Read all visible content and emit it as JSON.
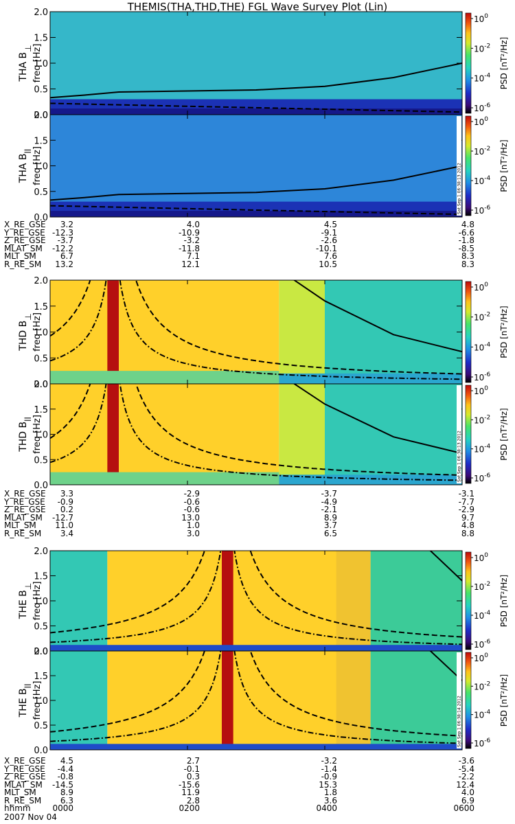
{
  "title": "THEMIS(THA,THD,THE) FGL Wave Survey Plot (Lin)",
  "colors": {
    "low": "#1a1a8c",
    "mid": "#33c8b4",
    "high": "#ffd02a",
    "sat": "#b50f0f"
  },
  "chart_data": {
    "type": "heatmap",
    "title": "THEMIS(THA,THD,THE) FGL Wave Survey Plot (Lin)",
    "xlabel": "hhmm",
    "date": "2007 Nov 04",
    "x_ticks": [
      "0000",
      "0200",
      "0400",
      "0600"
    ],
    "xlim": [
      "0000",
      "0600"
    ],
    "ylim": [
      0.0,
      2.0
    ],
    "y_ticks": [
      "0.0",
      "0.5",
      "1.0",
      "1.5",
      "2.0"
    ],
    "colorbar": {
      "label": "PSD [nT²/Hz]",
      "scale": "log",
      "tick_exponents": [
        "0",
        "-2",
        "-4",
        "-6"
      ],
      "tick_base": "10",
      "colors": [
        "#000000",
        "#3b0a78",
        "#1e2cc8",
        "#1f8fe6",
        "#25d3c2",
        "#46e46a",
        "#d5ea2c",
        "#ffc21a",
        "#f2560f",
        "#bf0a0a"
      ]
    },
    "panels": [
      {
        "id": "tha-bperp",
        "label_prefix": "THA B",
        "label_symbol": "⊥",
        "ylabel": "freq [Hz]",
        "stamp": ""
      },
      {
        "id": "tha-bpar",
        "label_prefix": "THA B",
        "label_symbol": "ll",
        "ylabel": "freq [Hz]",
        "stamp": "Sat Sep 1 06:38:13 2012"
      },
      {
        "id": "thd-bperp",
        "label_prefix": "THD B",
        "label_symbol": "⊥",
        "ylabel": "freq [Hz]",
        "stamp": ""
      },
      {
        "id": "thd-bpar",
        "label_prefix": "THD B",
        "label_symbol": "ll",
        "ylabel": "freq [Hz]",
        "stamp": "Sat Sep 1 06:38:13 2012"
      },
      {
        "id": "the-bperp",
        "label_prefix": "THE B",
        "label_symbol": "⊥",
        "ylabel": "freq [Hz]",
        "stamp": ""
      },
      {
        "id": "the-bpar",
        "label_prefix": "THE B",
        "label_symbol": "ll",
        "ylabel": "freq [Hz]",
        "stamp": "Sat Sep 1 06:38:14 2012"
      }
    ],
    "gyro_curves": {
      "tha": {
        "x": [
          "0000",
          "0030",
          "0100",
          "0200",
          "0300",
          "0400",
          "0500",
          "0600"
        ],
        "y": [
          0.33,
          0.38,
          0.44,
          0.46,
          0.48,
          0.55,
          0.72,
          1.0
        ]
      },
      "thd": {
        "x": [
          "0330",
          "0400",
          "0500",
          "0600"
        ],
        "y": [
          2.05,
          1.6,
          0.95,
          0.62
        ]
      },
      "the": {
        "x": [
          "0530",
          "0600"
        ],
        "y": [
          2.05,
          1.4
        ]
      }
    }
  },
  "ephemeris": [
    {
      "rows": [
        {
          "label": "X_RE_GSE",
          "values": [
            "3.2",
            "4.0",
            "4.5",
            "4.8"
          ]
        },
        {
          "label": "Y_RE_GSE",
          "values": [
            "-12.3",
            "-10.9",
            "-9.1",
            "-6.6"
          ]
        },
        {
          "label": "Z_RE_GSE",
          "values": [
            "-3.7",
            "-3.2",
            "-2.6",
            "-1.8"
          ]
        },
        {
          "label": "MLAT_SM",
          "values": [
            "-12.2",
            "-11.8",
            "-10.1",
            "-8.5"
          ]
        },
        {
          "label": "MLT_SM",
          "values": [
            "6.7",
            "7.1",
            "7.6",
            "8.3"
          ]
        },
        {
          "label": "R_RE_SM",
          "values": [
            "13.2",
            "12.1",
            "10.5",
            "8.3"
          ]
        }
      ]
    },
    {
      "rows": [
        {
          "label": "X_RE_GSE",
          "values": [
            "3.3",
            "-2.9",
            "-3.7",
            "-3.1"
          ]
        },
        {
          "label": "Y_RE_GSE",
          "values": [
            "-0.9",
            "-0.6",
            "-4.9",
            "-7.7"
          ]
        },
        {
          "label": "Z_RE_GSE",
          "values": [
            "0.2",
            "-0.6",
            "-2.1",
            "-2.9"
          ]
        },
        {
          "label": "MLAT_SM",
          "values": [
            "-12.7",
            "13.0",
            "8.9",
            "9.7"
          ]
        },
        {
          "label": "MLT_SM",
          "values": [
            "11.0",
            "1.0",
            "3.7",
            "4.8"
          ]
        },
        {
          "label": "R_RE_SM",
          "values": [
            "3.4",
            "3.0",
            "6.5",
            "8.8"
          ]
        }
      ]
    },
    {
      "rows": [
        {
          "label": "X_RE_GSE",
          "values": [
            "4.5",
            "2.7",
            "-3.2",
            "-3.6"
          ]
        },
        {
          "label": "Y_RE_GSE",
          "values": [
            "-4.4",
            "-0.1",
            "-1.4",
            "-5.4"
          ]
        },
        {
          "label": "Z_RE_GSE",
          "values": [
            "-0.8",
            "0.3",
            "-0.9",
            "-2.2"
          ]
        },
        {
          "label": "MLAT_SM",
          "values": [
            "-14.5",
            "-15.6",
            "15.3",
            "12.4"
          ]
        },
        {
          "label": "MLT_SM",
          "values": [
            "8.9",
            "11.9",
            "1.8",
            "4.0"
          ]
        },
        {
          "label": "R_RE_SM",
          "values": [
            "6.3",
            "2.8",
            "3.6",
            "6.9"
          ]
        },
        {
          "label": "hhmm",
          "values": [
            "0000",
            "0200",
            "0400",
            "0600"
          ]
        }
      ]
    }
  ]
}
